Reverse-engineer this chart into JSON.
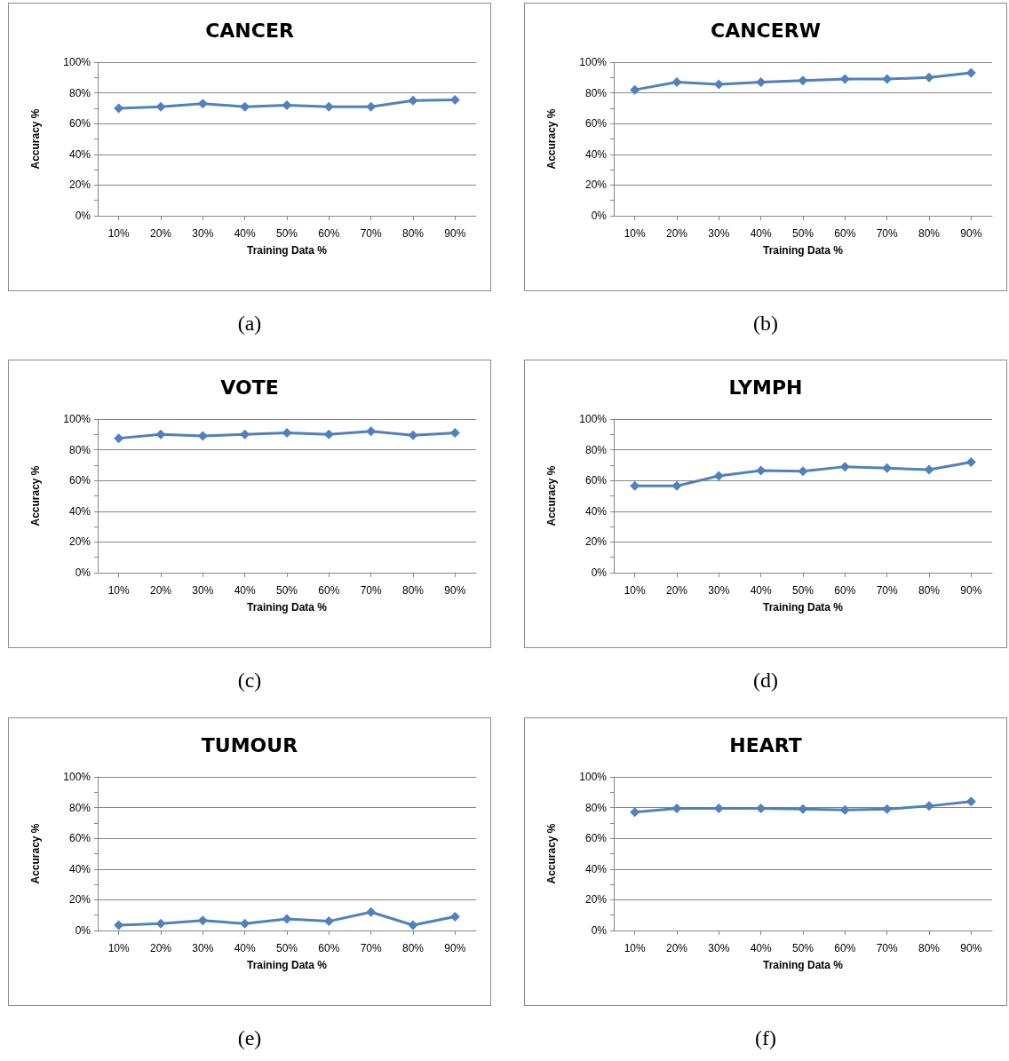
{
  "chart_data": [
    {
      "type": "line",
      "title": "CANCER",
      "xlabel": "Training Data %",
      "ylabel": "Accuracy %",
      "annotations": [
        "(a)"
      ],
      "categories": [
        "10%",
        "20%",
        "30%",
        "40%",
        "50%",
        "60%",
        "70%",
        "80%",
        "90%"
      ],
      "series": [
        {
          "color": "#4f81bd",
          "values": [
            70,
            71,
            73,
            71,
            72,
            71,
            71,
            75,
            75.5
          ]
        }
      ],
      "ylim": [
        0,
        100
      ],
      "yticks": [
        {
          "value": 0,
          "label": "0%"
        },
        {
          "value": 20,
          "label": "20%"
        },
        {
          "value": 40,
          "label": "40%"
        },
        {
          "value": 60,
          "label": "60%"
        },
        {
          "value": 80,
          "label": "80%"
        },
        {
          "value": 100,
          "label": "100%"
        }
      ],
      "grid": "y",
      "marker": "diamond"
    },
    {
      "type": "line",
      "title": "CANCERW",
      "xlabel": "Training Data %",
      "ylabel": "Accuracy %",
      "annotations": [
        "(b)"
      ],
      "categories": [
        "10%",
        "20%",
        "30%",
        "40%",
        "50%",
        "60%",
        "70%",
        "80%",
        "90%"
      ],
      "series": [
        {
          "color": "#4f81bd",
          "values": [
            82,
            87,
            85.5,
            87,
            88,
            89,
            89,
            90,
            93
          ]
        }
      ],
      "ylim": [
        0,
        100
      ],
      "yticks": [
        {
          "value": 0,
          "label": "0%"
        },
        {
          "value": 20,
          "label": "20%"
        },
        {
          "value": 40,
          "label": "40%"
        },
        {
          "value": 60,
          "label": "60%"
        },
        {
          "value": 80,
          "label": "80%"
        },
        {
          "value": 100,
          "label": "100%"
        }
      ],
      "grid": "y",
      "marker": "diamond"
    },
    {
      "type": "line",
      "title": "VOTE",
      "xlabel": "Training Data %",
      "ylabel": "Accuracy %",
      "annotations": [
        "(c)"
      ],
      "categories": [
        "10%",
        "20%",
        "30%",
        "40%",
        "50%",
        "60%",
        "70%",
        "80%",
        "90%"
      ],
      "series": [
        {
          "color": "#4f81bd",
          "values": [
            87.5,
            90,
            89,
            90,
            91,
            90,
            92,
            89.5,
            91
          ]
        }
      ],
      "ylim": [
        0,
        100
      ],
      "yticks": [
        {
          "value": 0,
          "label": "0%"
        },
        {
          "value": 20,
          "label": "20%"
        },
        {
          "value": 40,
          "label": "40%"
        },
        {
          "value": 60,
          "label": "60%"
        },
        {
          "value": 80,
          "label": "80%"
        },
        {
          "value": 100,
          "label": "100%"
        }
      ],
      "grid": "y",
      "marker": "diamond"
    },
    {
      "type": "line",
      "title": "LYMPH",
      "xlabel": "Training Data %",
      "ylabel": "Accuracy %",
      "annotations": [
        "(d)"
      ],
      "categories": [
        "10%",
        "20%",
        "30%",
        "40%",
        "50%",
        "60%",
        "70%",
        "80%",
        "90%"
      ],
      "series": [
        {
          "color": "#4f81bd",
          "values": [
            56.5,
            56.5,
            63,
            66.5,
            66,
            69,
            68,
            67,
            72
          ]
        }
      ],
      "ylim": [
        0,
        100
      ],
      "yticks": [
        {
          "value": 0,
          "label": "0%"
        },
        {
          "value": 20,
          "label": "20%"
        },
        {
          "value": 40,
          "label": "40%"
        },
        {
          "value": 60,
          "label": "60%"
        },
        {
          "value": 80,
          "label": "80%"
        },
        {
          "value": 100,
          "label": "100%"
        }
      ],
      "grid": "y",
      "marker": "diamond"
    },
    {
      "type": "line",
      "title": "TUMOUR",
      "xlabel": "Training Data %",
      "ylabel": "Accuracy %",
      "annotations": [
        "(e)"
      ],
      "categories": [
        "10%",
        "20%",
        "30%",
        "40%",
        "50%",
        "60%",
        "70%",
        "80%",
        "90%"
      ],
      "series": [
        {
          "color": "#4f81bd",
          "values": [
            3.5,
            4.5,
            6.5,
            4.5,
            7.5,
            6,
            12,
            3.5,
            9
          ]
        }
      ],
      "ylim": [
        0,
        100
      ],
      "yticks": [
        {
          "value": 0,
          "label": "0%"
        },
        {
          "value": 20,
          "label": "20%"
        },
        {
          "value": 40,
          "label": "40%"
        },
        {
          "value": 60,
          "label": "60%"
        },
        {
          "value": 80,
          "label": "80%"
        },
        {
          "value": 100,
          "label": "100%"
        }
      ],
      "grid": "y",
      "marker": "diamond"
    },
    {
      "type": "line",
      "title": "HEART",
      "xlabel": "Training Data %",
      "ylabel": "Accuracy %",
      "annotations": [
        "(f)"
      ],
      "categories": [
        "10%",
        "20%",
        "30%",
        "40%",
        "50%",
        "60%",
        "70%",
        "80%",
        "90%"
      ],
      "series": [
        {
          "color": "#4f81bd",
          "values": [
            77,
            79.5,
            79.5,
            79.5,
            79,
            78.5,
            79,
            81,
            84
          ]
        }
      ],
      "ylim": [
        0,
        100
      ],
      "yticks": [
        {
          "value": 0,
          "label": "0%"
        },
        {
          "value": 20,
          "label": "20%"
        },
        {
          "value": 40,
          "label": "40%"
        },
        {
          "value": 60,
          "label": "60%"
        },
        {
          "value": 80,
          "label": "80%"
        },
        {
          "value": 100,
          "label": "100%"
        }
      ],
      "grid": "y",
      "marker": "diamond"
    }
  ]
}
